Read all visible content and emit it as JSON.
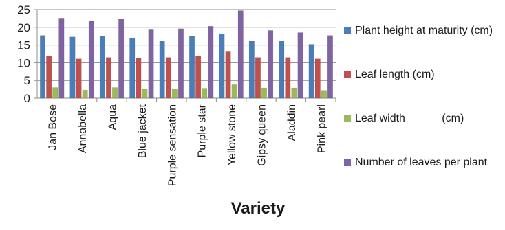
{
  "chart_data": {
    "type": "bar",
    "title": "",
    "xlabel": "Variety",
    "ylabel": "",
    "ylim": [
      0,
      25
    ],
    "yticks": [
      0,
      5,
      10,
      15,
      20,
      25
    ],
    "grid": true,
    "legend_position": "right",
    "categories": [
      "Jan Bose",
      "Annabella",
      "Aqua",
      "Blue jacket",
      "Purple sensation",
      "Purple star",
      "Yellow stone",
      "Gipsy queen",
      "Aladdin",
      "Pink pearl"
    ],
    "series": [
      {
        "name": "Plant height at maturity (cm)",
        "color": "#4a7ebb",
        "values": [
          17.7,
          17.3,
          17.5,
          16.9,
          16.2,
          17.5,
          18.2,
          16.1,
          16.2,
          15.2
        ]
      },
      {
        "name": "Leaf length (cm)",
        "color": "#c0504d",
        "values": [
          11.9,
          11.1,
          11.5,
          11.3,
          11.5,
          11.9,
          13.1,
          11.5,
          11.5,
          11.1
        ]
      },
      {
        "name": "Leaf width            (cm)",
        "color": "#9bbb59",
        "values": [
          3.0,
          2.3,
          3.0,
          2.5,
          2.6,
          2.8,
          3.8,
          2.9,
          2.9,
          2.2
        ]
      },
      {
        "name": "Number of leaves per plant",
        "color": "#8064a2",
        "values": [
          22.6,
          21.7,
          22.4,
          19.5,
          19.6,
          20.3,
          24.7,
          19.1,
          18.5,
          17.7
        ]
      }
    ]
  }
}
